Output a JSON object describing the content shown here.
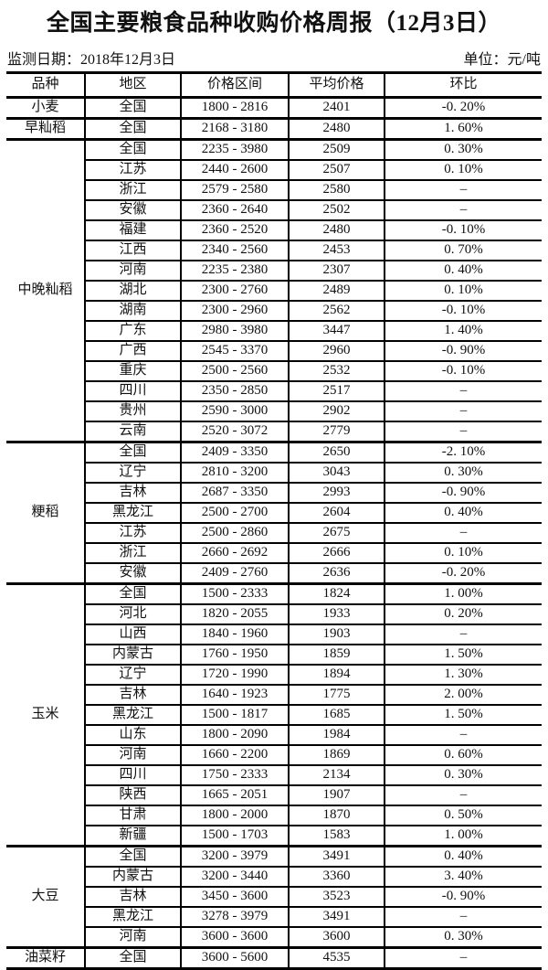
{
  "title": "全国主要粮食品种收购价格周报（12月3日）",
  "meta": {
    "date_label": "监测日期：2018年12月3日",
    "unit_label": "单位：元/吨"
  },
  "colors": {
    "background": "#ffffff",
    "text": "#111111",
    "border": "#000000"
  },
  "table": {
    "headers": [
      "品种",
      "地区",
      "价格区间",
      "平均价格",
      "环比"
    ],
    "empty_marker": "–",
    "groups": [
      {
        "variety": "小麦",
        "rows": [
          [
            "全国",
            "1800 - 2816",
            "2401",
            "-0. 20%"
          ]
        ]
      },
      {
        "variety": "早籼稻",
        "rows": [
          [
            "全国",
            "2168 - 3180",
            "2480",
            "1. 60%"
          ]
        ]
      },
      {
        "variety": "中晚籼稻",
        "rows": [
          [
            "全国",
            "2235 - 3980",
            "2509",
            "0. 30%"
          ],
          [
            "江苏",
            "2440 - 2600",
            "2507",
            "0. 10%"
          ],
          [
            "浙江",
            "2579 - 2580",
            "2580",
            "–"
          ],
          [
            "安徽",
            "2360 - 2640",
            "2502",
            "–"
          ],
          [
            "福建",
            "2360 - 2520",
            "2480",
            "-0. 10%"
          ],
          [
            "江西",
            "2340 - 2560",
            "2453",
            "0. 70%"
          ],
          [
            "河南",
            "2235 - 2380",
            "2307",
            "0. 40%"
          ],
          [
            "湖北",
            "2300 - 2760",
            "2489",
            "0. 10%"
          ],
          [
            "湖南",
            "2300 - 2960",
            "2562",
            "-0. 10%"
          ],
          [
            "广东",
            "2980 - 3980",
            "3447",
            "1. 40%"
          ],
          [
            "广西",
            "2545 - 3370",
            "2960",
            "-0. 90%"
          ],
          [
            "重庆",
            "2500 - 2560",
            "2532",
            "-0. 10%"
          ],
          [
            "四川",
            "2350 - 2850",
            "2517",
            "–"
          ],
          [
            "贵州",
            "2590 - 3000",
            "2902",
            "–"
          ],
          [
            "云南",
            "2520 - 3072",
            "2779",
            "–"
          ]
        ]
      },
      {
        "variety": "粳稻",
        "rows": [
          [
            "全国",
            "2409 - 3350",
            "2650",
            "-2. 10%"
          ],
          [
            "辽宁",
            "2810 - 3200",
            "3043",
            "0. 30%"
          ],
          [
            "吉林",
            "2687 - 3350",
            "2993",
            "-0. 90%"
          ],
          [
            "黑龙江",
            "2500 - 2700",
            "2604",
            "0. 40%"
          ],
          [
            "江苏",
            "2500 - 2860",
            "2675",
            "–"
          ],
          [
            "浙江",
            "2660 - 2692",
            "2666",
            "0. 10%"
          ],
          [
            "安徽",
            "2409 - 2760",
            "2636",
            "-0. 20%"
          ]
        ]
      },
      {
        "variety": "玉米",
        "rows": [
          [
            "全国",
            "1500 - 2333",
            "1824",
            "1. 00%"
          ],
          [
            "河北",
            "1820 - 2055",
            "1933",
            "0. 20%"
          ],
          [
            "山西",
            "1840 - 1960",
            "1903",
            "–"
          ],
          [
            "内蒙古",
            "1760 - 1950",
            "1859",
            "1. 50%"
          ],
          [
            "辽宁",
            "1720 - 1990",
            "1894",
            "1. 30%"
          ],
          [
            "吉林",
            "1640 - 1923",
            "1775",
            "2. 00%"
          ],
          [
            "黑龙江",
            "1500 - 1817",
            "1685",
            "1. 50%"
          ],
          [
            "山东",
            "1800 - 2090",
            "1984",
            "–"
          ],
          [
            "河南",
            "1660 - 2200",
            "1869",
            "0. 60%"
          ],
          [
            "四川",
            "1750 - 2333",
            "2134",
            "0. 30%"
          ],
          [
            "陕西",
            "1665 - 2051",
            "1907",
            "–"
          ],
          [
            "甘肃",
            "1800 - 2000",
            "1870",
            "0. 50%"
          ],
          [
            "新疆",
            "1500 - 1703",
            "1583",
            "1. 00%"
          ]
        ]
      },
      {
        "variety": "大豆",
        "rows": [
          [
            "全国",
            "3200 - 3979",
            "3491",
            "0. 40%"
          ],
          [
            "内蒙古",
            "3200 - 3440",
            "3360",
            "3. 40%"
          ],
          [
            "吉林",
            "3450 - 3600",
            "3523",
            "-0. 90%"
          ],
          [
            "黑龙江",
            "3278 - 3979",
            "3491",
            "–"
          ],
          [
            "河南",
            "3600 - 3600",
            "3600",
            "0. 30%"
          ]
        ]
      },
      {
        "variety": "油菜籽",
        "rows": [
          [
            "全国",
            "3600 - 5600",
            "4535",
            "–"
          ]
        ]
      }
    ]
  }
}
